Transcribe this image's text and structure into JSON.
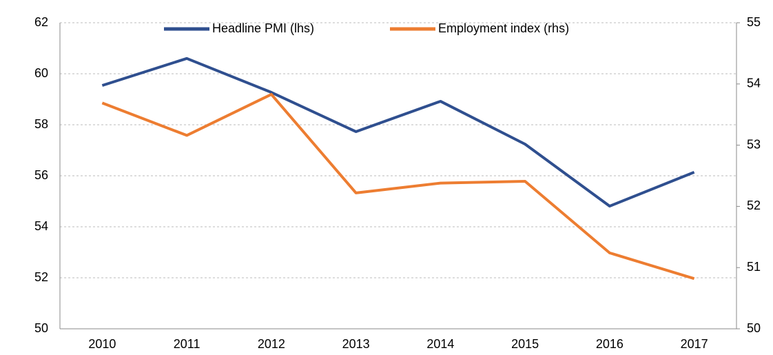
{
  "chart_data": {
    "type": "line",
    "categories": [
      "2010",
      "2011",
      "2012",
      "2013",
      "2014",
      "2015",
      "2016",
      "2017"
    ],
    "series": [
      {
        "name": "Headline PMI (lhs)",
        "color": "#2f4f8f",
        "axis": "y",
        "values": [
          59.54,
          60.6,
          59.27,
          57.73,
          58.92,
          57.24,
          54.81,
          56.14
        ]
      },
      {
        "name": "Employment index (rhs)",
        "color": "#ed7d31",
        "axis": "y2",
        "values": [
          53.69,
          53.16,
          53.83,
          52.22,
          52.38,
          52.41,
          51.24,
          50.82
        ]
      }
    ],
    "ylim": [
      50,
      62
    ],
    "yticks": [
      50,
      52,
      54,
      56,
      58,
      60,
      62
    ],
    "y2lim": [
      50,
      55
    ],
    "y2ticks": [
      50,
      51,
      52,
      53,
      54,
      55
    ],
    "grid": true,
    "legend": "top"
  }
}
